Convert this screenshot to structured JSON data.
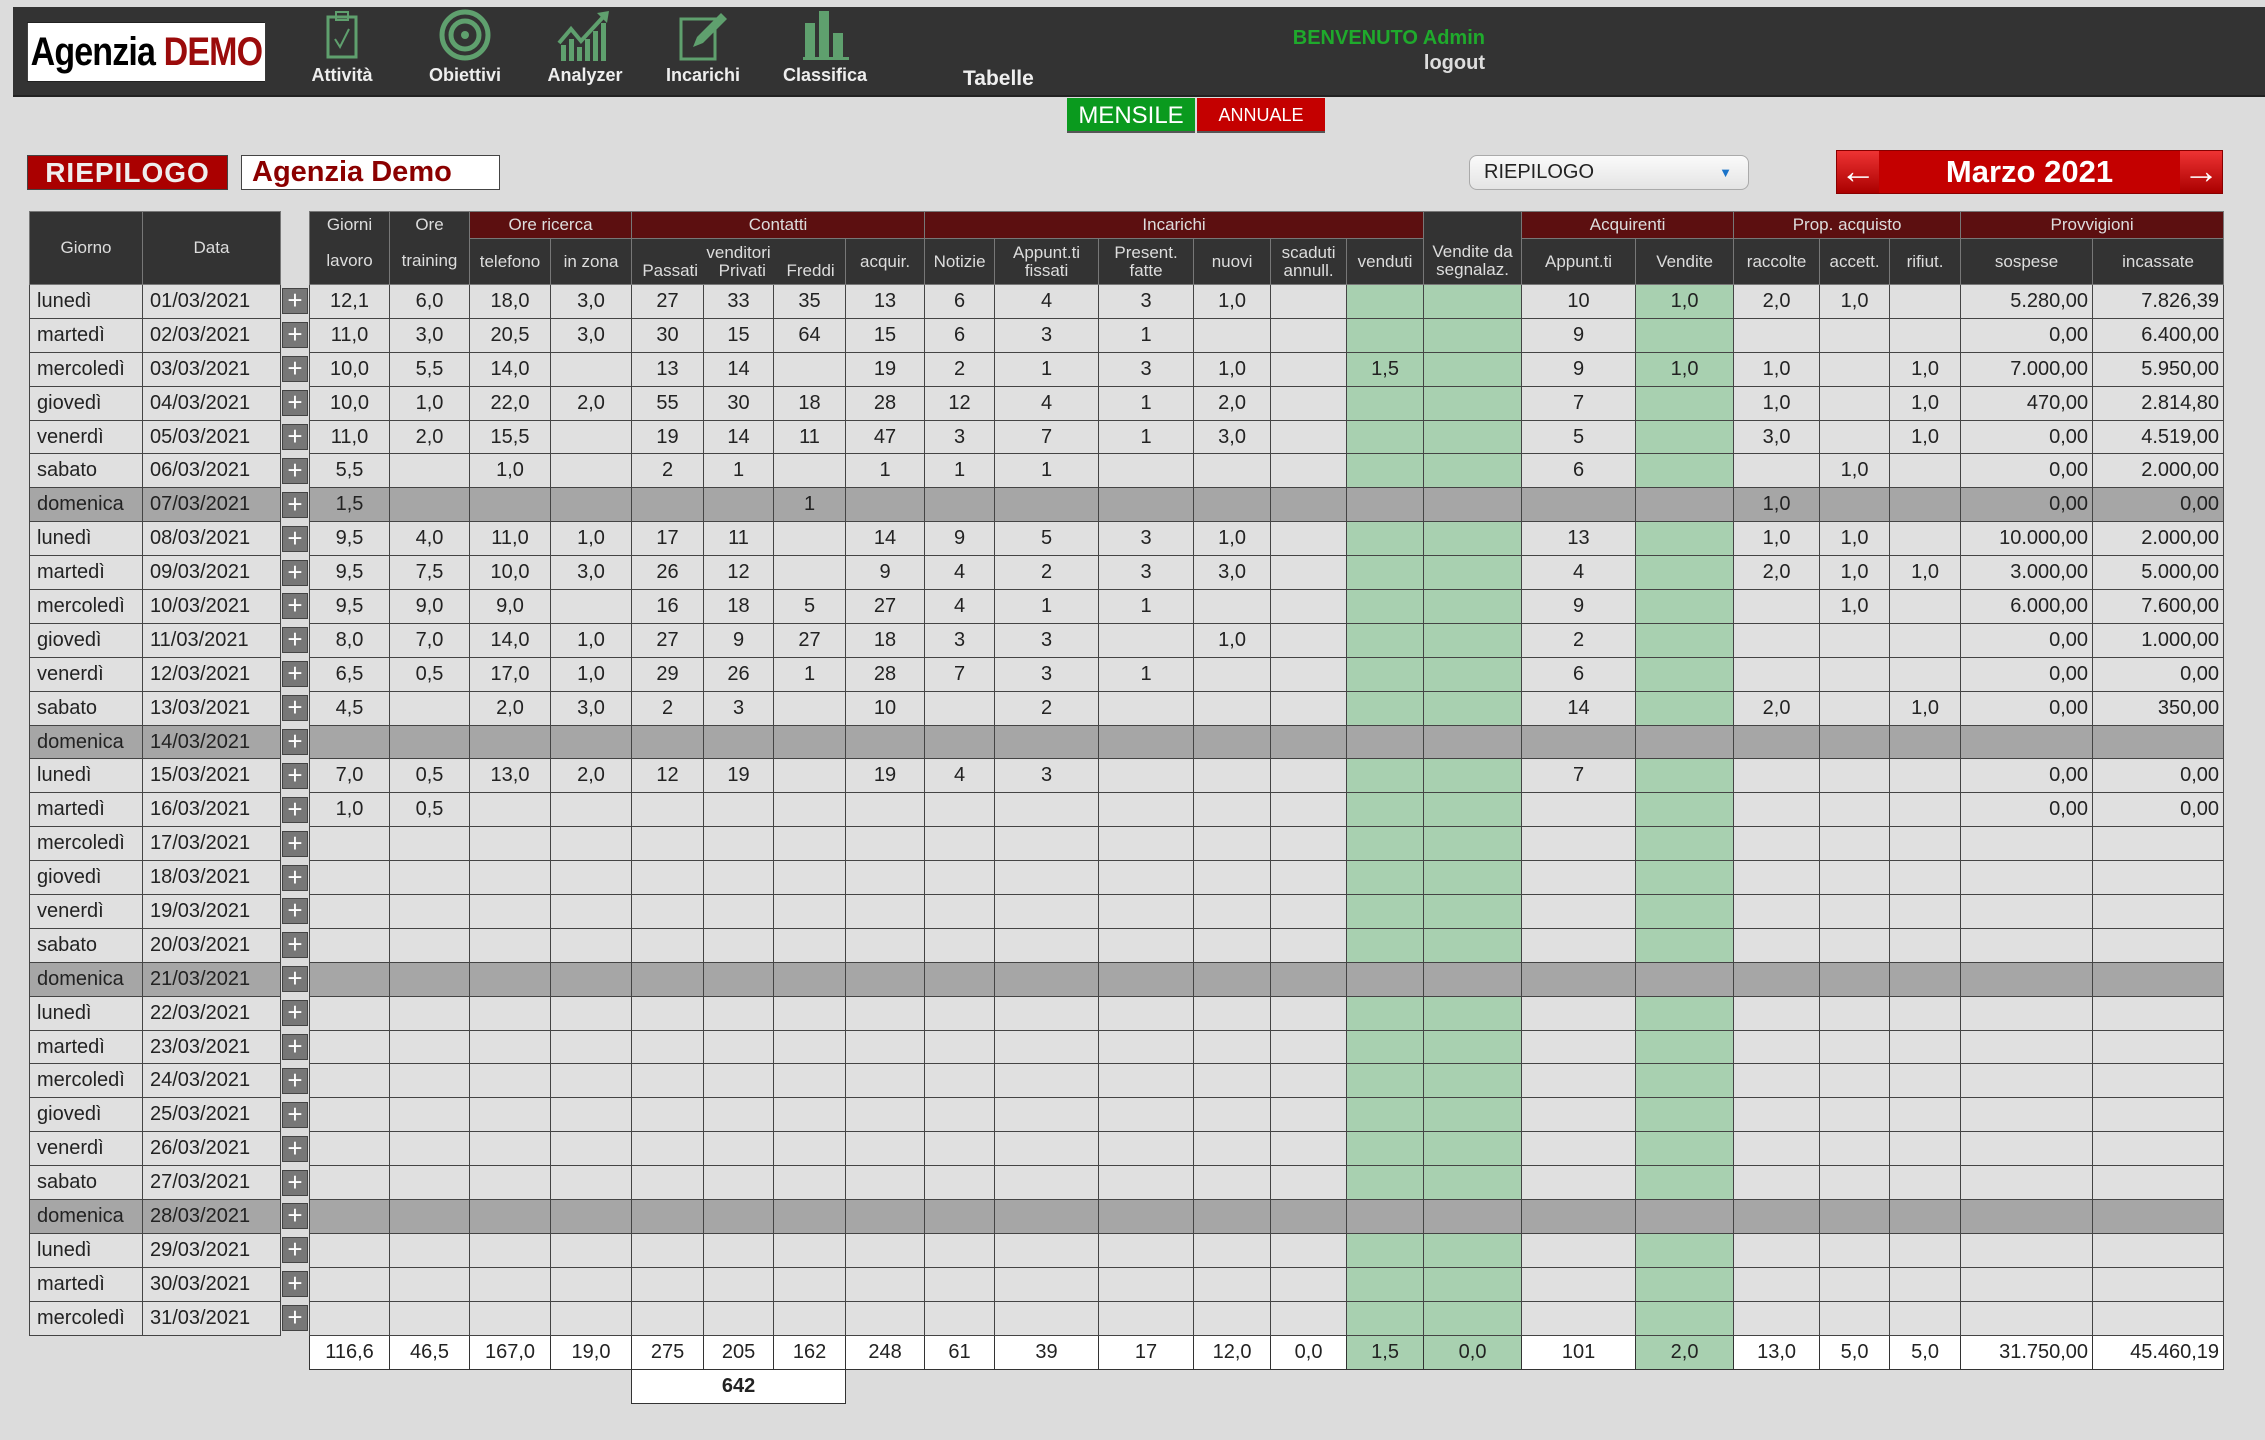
{
  "header": {
    "logo": {
      "part1": "Agenzia",
      "part2": "DEMO"
    },
    "nav": [
      {
        "label": "Attività",
        "icon": "clipboard-check-icon"
      },
      {
        "label": "Obiettivi",
        "icon": "target-icon"
      },
      {
        "label": "Analyzer",
        "icon": "chart-growth-icon"
      },
      {
        "label": "Incarichi",
        "icon": "edit-document-icon"
      },
      {
        "label": "Classifica",
        "icon": "bar-chart-icon"
      }
    ],
    "tabelle": "Tabelle",
    "welcome": "BENVENUTO Admin",
    "logout": "logout"
  },
  "period": {
    "monthly": "MENSILE",
    "annual": "ANNUALE",
    "active": "MENSILE"
  },
  "summary_label": "RIEPILOGO",
  "agency": "Agenzia Demo",
  "view_select": {
    "value": "RIEPILOGO"
  },
  "month_nav": {
    "label": "Marzo 2021"
  },
  "colors": {
    "dark": "#333333",
    "group": "#5c0f10",
    "green": "#a8d0b0",
    "sunday": "#a6a6a6",
    "accent": "#c40000"
  },
  "table": {
    "headers": {
      "giorno": "Giorno",
      "data": "Data",
      "giorni_top": "Giorni",
      "giorni_bottom": "lavoro",
      "ore_top": "Ore",
      "ore_bottom": "training",
      "ore_ricerca": "Ore ricerca",
      "telefono": "telefono",
      "in_zona": "in zona",
      "contatti": "Contatti",
      "venditori": "venditori",
      "passati": "Passati",
      "privati": "Privati",
      "freddi": "Freddi",
      "acquir": "acquir.",
      "incarichi": "Incarichi",
      "notizie": "Notizie",
      "appunt_fissati": "Appunt.ti fissati",
      "present_fatte": "Present. fatte",
      "nuovi": "nuovi",
      "scaduti": "scaduti annull.",
      "venduti": "venduti",
      "vendite_segn": "Vendite da segnalaz.",
      "acquirenti": "Acquirenti",
      "acq_appunt": "Appunt.ti",
      "acq_vendite": "Vendite",
      "prop": "Prop. acquisto",
      "raccolte": "raccolte",
      "accett": "accett.",
      "rifiut": "rifiut.",
      "provvigioni": "Provvigioni",
      "sospese": "sospese",
      "incassate": "incassate"
    },
    "rows": [
      {
        "day": "lunedì",
        "date": "01/03/2021",
        "values": [
          "12,1",
          "6,0",
          "18,0",
          "3,0",
          "27",
          "33",
          "35",
          "13",
          "6",
          "4",
          "3",
          "1,0",
          "",
          "",
          "",
          "10",
          "1,0",
          "2,0",
          "1,0",
          "",
          "5.280,00",
          "7.826,39"
        ]
      },
      {
        "day": "martedì",
        "date": "02/03/2021",
        "values": [
          "11,0",
          "3,0",
          "20,5",
          "3,0",
          "30",
          "15",
          "64",
          "15",
          "6",
          "3",
          "1",
          "",
          "",
          "",
          "",
          "9",
          "",
          "",
          "",
          "",
          "0,00",
          "6.400,00"
        ]
      },
      {
        "day": "mercoledì",
        "date": "03/03/2021",
        "values": [
          "10,0",
          "5,5",
          "14,0",
          "",
          "13",
          "14",
          "",
          "19",
          "2",
          "1",
          "3",
          "1,0",
          "",
          "1,5",
          "",
          "9",
          "1,0",
          "1,0",
          "",
          "1,0",
          "7.000,00",
          "5.950,00"
        ]
      },
      {
        "day": "giovedì",
        "date": "04/03/2021",
        "values": [
          "10,0",
          "1,0",
          "22,0",
          "2,0",
          "55",
          "30",
          "18",
          "28",
          "12",
          "4",
          "1",
          "2,0",
          "",
          "",
          "",
          "7",
          "",
          "1,0",
          "",
          "1,0",
          "470,00",
          "2.814,80"
        ]
      },
      {
        "day": "venerdì",
        "date": "05/03/2021",
        "values": [
          "11,0",
          "2,0",
          "15,5",
          "",
          "19",
          "14",
          "11",
          "47",
          "3",
          "7",
          "1",
          "3,0",
          "",
          "",
          "",
          "5",
          "",
          "3,0",
          "",
          "1,0",
          "0,00",
          "4.519,00"
        ]
      },
      {
        "day": "sabato",
        "date": "06/03/2021",
        "values": [
          "5,5",
          "",
          "1,0",
          "",
          "2",
          "1",
          "",
          "1",
          "1",
          "1",
          "",
          "",
          "",
          "",
          "",
          "6",
          "",
          "",
          "1,0",
          "",
          "0,00",
          "2.000,00"
        ]
      },
      {
        "day": "domenica",
        "date": "07/03/2021",
        "values": [
          "1,5",
          "",
          "",
          "",
          "",
          "",
          "1",
          "",
          "",
          "",
          "",
          "",
          "",
          "",
          "",
          "",
          "",
          "1,0",
          "",
          "",
          "0,00",
          "0,00"
        ]
      },
      {
        "day": "lunedì",
        "date": "08/03/2021",
        "values": [
          "9,5",
          "4,0",
          "11,0",
          "1,0",
          "17",
          "11",
          "",
          "14",
          "9",
          "5",
          "3",
          "1,0",
          "",
          "",
          "",
          "13",
          "",
          "1,0",
          "1,0",
          "",
          "10.000,00",
          "2.000,00"
        ]
      },
      {
        "day": "martedì",
        "date": "09/03/2021",
        "values": [
          "9,5",
          "7,5",
          "10,0",
          "3,0",
          "26",
          "12",
          "",
          "9",
          "4",
          "2",
          "3",
          "3,0",
          "",
          "",
          "",
          "4",
          "",
          "2,0",
          "1,0",
          "1,0",
          "3.000,00",
          "5.000,00"
        ]
      },
      {
        "day": "mercoledì",
        "date": "10/03/2021",
        "values": [
          "9,5",
          "9,0",
          "9,0",
          "",
          "16",
          "18",
          "5",
          "27",
          "4",
          "1",
          "1",
          "",
          "",
          "",
          "",
          "9",
          "",
          "",
          "1,0",
          "",
          "6.000,00",
          "7.600,00"
        ]
      },
      {
        "day": "giovedì",
        "date": "11/03/2021",
        "values": [
          "8,0",
          "7,0",
          "14,0",
          "1,0",
          "27",
          "9",
          "27",
          "18",
          "3",
          "3",
          "",
          "1,0",
          "",
          "",
          "",
          "2",
          "",
          "",
          "",
          "",
          "0,00",
          "1.000,00"
        ]
      },
      {
        "day": "venerdì",
        "date": "12/03/2021",
        "values": [
          "6,5",
          "0,5",
          "17,0",
          "1,0",
          "29",
          "26",
          "1",
          "28",
          "7",
          "3",
          "1",
          "",
          "",
          "",
          "",
          "6",
          "",
          "",
          "",
          "",
          "0,00",
          "0,00"
        ]
      },
      {
        "day": "sabato",
        "date": "13/03/2021",
        "values": [
          "4,5",
          "",
          "2,0",
          "3,0",
          "2",
          "3",
          "",
          "10",
          "",
          "2",
          "",
          "",
          "",
          "",
          "",
          "14",
          "",
          "2,0",
          "",
          "1,0",
          "0,00",
          "350,00"
        ]
      },
      {
        "day": "domenica",
        "date": "14/03/2021",
        "values": []
      },
      {
        "day": "lunedì",
        "date": "15/03/2021",
        "values": [
          "7,0",
          "0,5",
          "13,0",
          "2,0",
          "12",
          "19",
          "",
          "19",
          "4",
          "3",
          "",
          "",
          "",
          "",
          "",
          "7",
          "",
          "",
          "",
          "",
          "0,00",
          "0,00"
        ]
      },
      {
        "day": "martedì",
        "date": "16/03/2021",
        "values": [
          "1,0",
          "0,5",
          "",
          "",
          "",
          "",
          "",
          "",
          "",
          "",
          "",
          "",
          "",
          "",
          "",
          "",
          "",
          "",
          "",
          "",
          "0,00",
          "0,00"
        ]
      },
      {
        "day": "mercoledì",
        "date": "17/03/2021",
        "values": []
      },
      {
        "day": "giovedì",
        "date": "18/03/2021",
        "values": []
      },
      {
        "day": "venerdì",
        "date": "19/03/2021",
        "values": []
      },
      {
        "day": "sabato",
        "date": "20/03/2021",
        "values": []
      },
      {
        "day": "domenica",
        "date": "21/03/2021",
        "values": []
      },
      {
        "day": "lunedì",
        "date": "22/03/2021",
        "values": []
      },
      {
        "day": "martedì",
        "date": "23/03/2021",
        "values": []
      },
      {
        "day": "mercoledì",
        "date": "24/03/2021",
        "values": []
      },
      {
        "day": "giovedì",
        "date": "25/03/2021",
        "values": []
      },
      {
        "day": "venerdì",
        "date": "26/03/2021",
        "values": []
      },
      {
        "day": "sabato",
        "date": "27/03/2021",
        "values": []
      },
      {
        "day": "domenica",
        "date": "28/03/2021",
        "values": []
      },
      {
        "day": "lunedì",
        "date": "29/03/2021",
        "values": []
      },
      {
        "day": "martedì",
        "date": "30/03/2021",
        "values": []
      },
      {
        "day": "mercoledì",
        "date": "31/03/2021",
        "values": []
      }
    ],
    "totals": [
      "116,6",
      "46,5",
      "167,0",
      "19,0",
      "275",
      "205",
      "162",
      "248",
      "61",
      "39",
      "17",
      "12,0",
      "0,0",
      "1,5",
      "0,0",
      "101",
      "2,0",
      "13,0",
      "5,0",
      "5,0",
      "31.750,00",
      "45.460,19"
    ],
    "venditori_total": "642"
  }
}
